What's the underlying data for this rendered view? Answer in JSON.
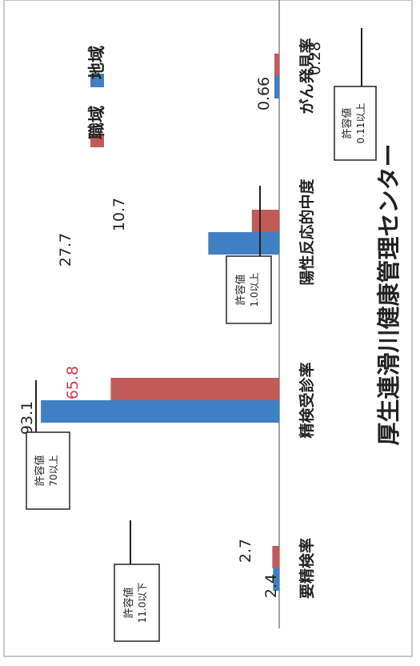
{
  "chart_data": {
    "type": "bar",
    "title": "厚生連滑川健康管理センター",
    "categories": [
      "要精検率",
      "精検受診率",
      "陽性反応的中度",
      "がん発見率"
    ],
    "series": [
      {
        "name": "地域",
        "values": [
          2.4,
          93.1,
          27.7,
          0.66
        ]
      },
      {
        "name": "職域",
        "values": [
          2.7,
          65.8,
          10.7,
          0.28
        ]
      }
    ],
    "value_labels": {
      "地域": [
        "2.4",
        "93.1",
        "27.7",
        "0.66"
      ],
      "職域": [
        "2.7",
        "65.8",
        "10.7",
        "0.28"
      ]
    },
    "reference_boxes": [
      {
        "label": "許容値",
        "value": "11.0以下",
        "category": "要精検率"
      },
      {
        "label": "許容値",
        "value": "70以上",
        "category": "精検受診率"
      },
      {
        "label": "許容値",
        "value": "1.0以上",
        "category": "陽性反応的中度"
      },
      {
        "label": "許容値",
        "value": "0.11以上",
        "category": "がん発見率"
      }
    ],
    "legend_position": "top-right",
    "orientation": "rotated-90",
    "colors": {
      "地域": "#3f7fc4",
      "職域": "#c25a5a",
      "highlight_label": "#d8384a"
    }
  }
}
